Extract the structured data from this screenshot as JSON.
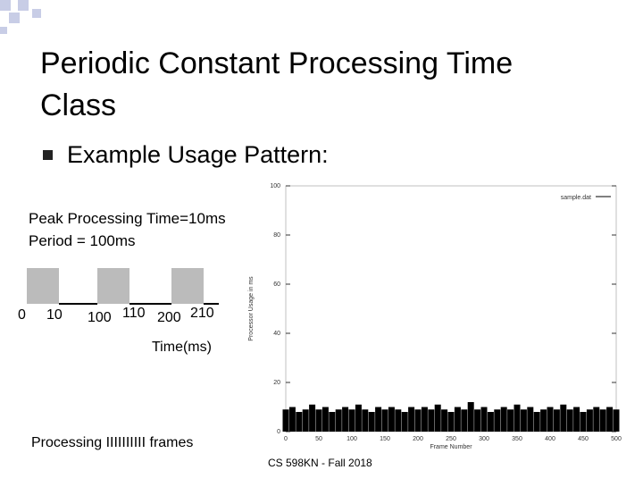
{
  "slide": {
    "title_line1": "Periodic Constant Processing Time",
    "title_line2": "Class",
    "bullet": "Example Usage Pattern:",
    "peak_text": "Peak Processing Time=10ms",
    "period_text": "Period = 100ms",
    "time_labels": [
      "0",
      "10",
      "100",
      "110",
      "200",
      "210"
    ],
    "time_axis_label": "Time(ms)",
    "caption": "Processing IIIIIIIIII frames",
    "footer": "CS 598KN - Fall 2018"
  },
  "chart_data": {
    "type": "bar",
    "xlabel": "Frame Number",
    "ylabel": "Processor Usage in ms",
    "series": [
      {
        "name": "sample.dat",
        "color": "#000000",
        "x": [
          0,
          10,
          20,
          30,
          40,
          50,
          60,
          70,
          80,
          90,
          100,
          110,
          120,
          130,
          140,
          150,
          160,
          170,
          180,
          190,
          200,
          210,
          220,
          230,
          240,
          250,
          260,
          270,
          280,
          290,
          300,
          310,
          320,
          330,
          340,
          350,
          360,
          370,
          380,
          390,
          400,
          410,
          420,
          430,
          440,
          450,
          460,
          470,
          480,
          490,
          500
        ],
        "values": [
          9,
          10,
          8,
          9,
          11,
          9,
          10,
          8,
          9,
          10,
          9,
          11,
          9,
          8,
          10,
          9,
          10,
          9,
          8,
          10,
          9,
          10,
          9,
          11,
          9,
          8,
          10,
          9,
          12,
          9,
          10,
          8,
          9,
          10,
          9,
          11,
          9,
          10,
          8,
          9,
          10,
          9,
          11,
          9,
          10,
          8,
          9,
          10,
          9,
          10,
          9
        ]
      }
    ],
    "xlim": [
      0,
      500
    ],
    "ylim": [
      0,
      100
    ],
    "xticks": [
      0,
      50,
      100,
      150,
      200,
      250,
      300,
      350,
      400,
      450,
      500
    ],
    "yticks": [
      0,
      20,
      40,
      60,
      80,
      100
    ]
  }
}
